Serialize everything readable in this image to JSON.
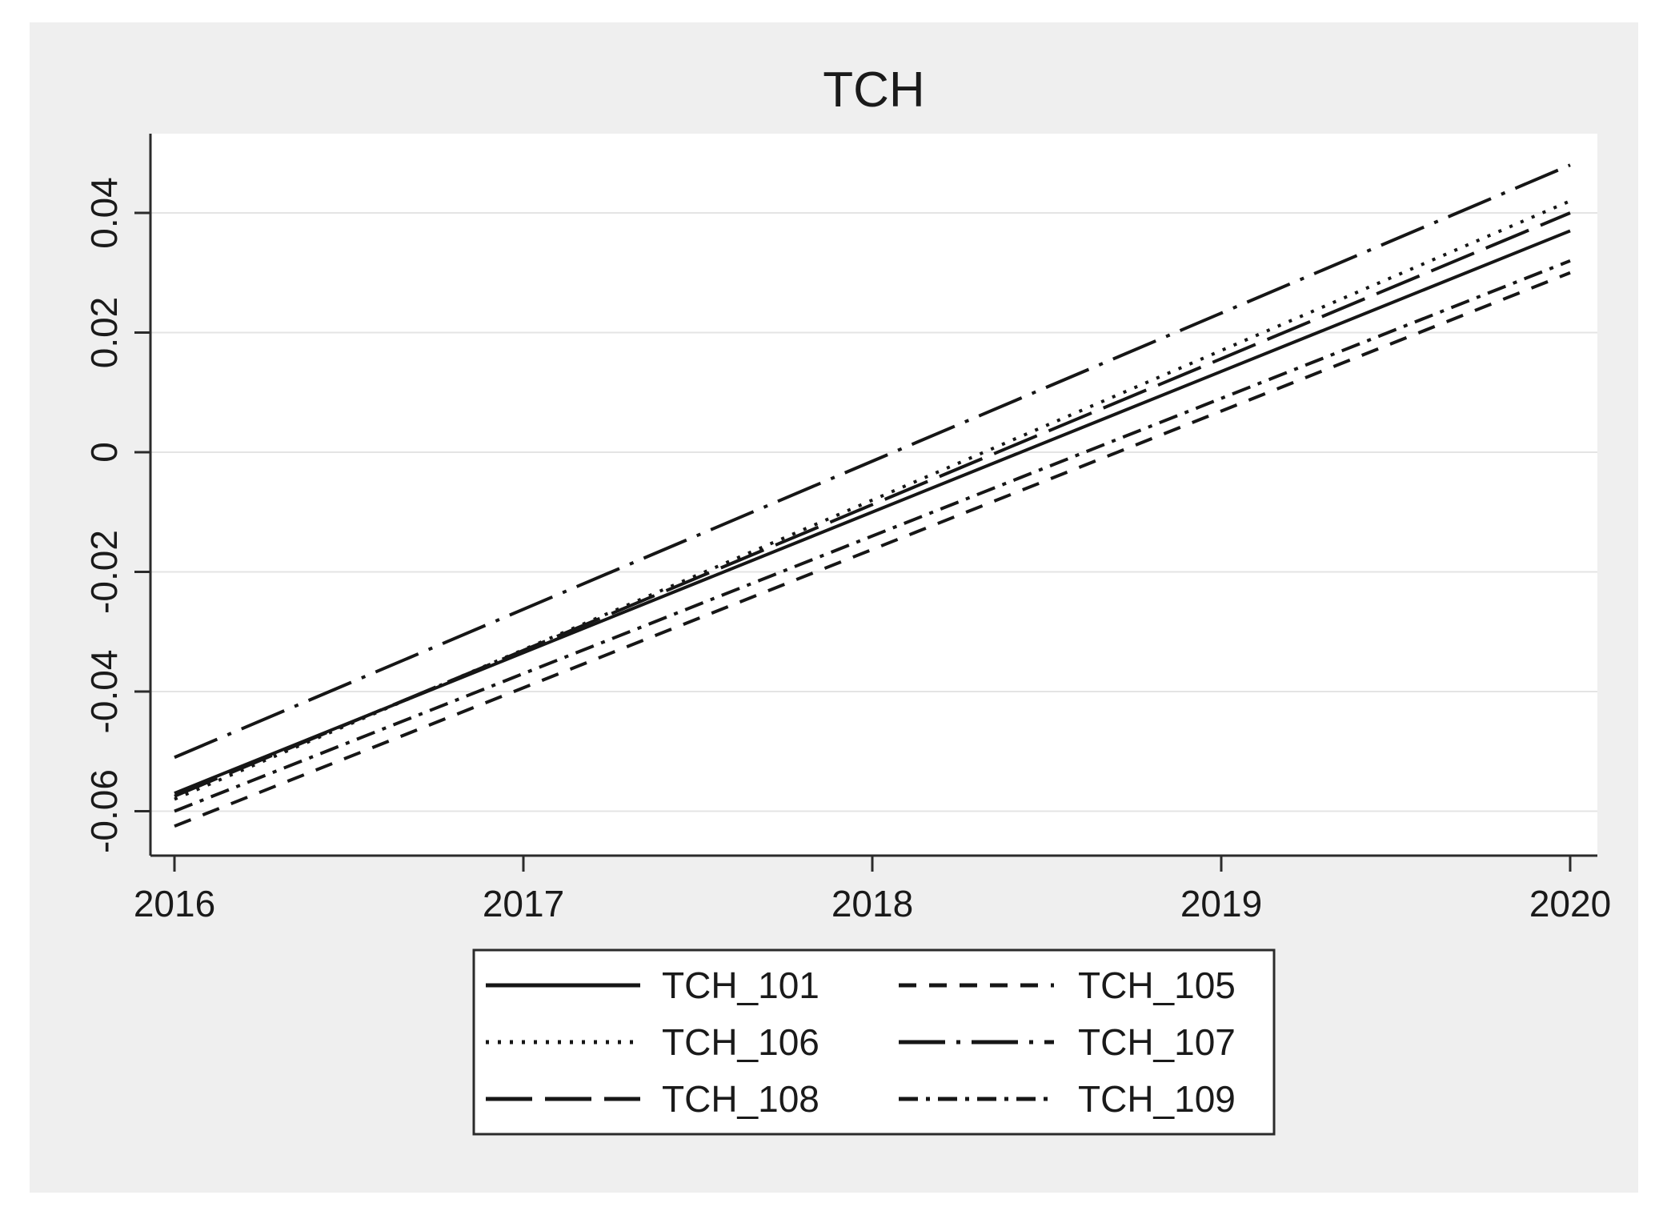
{
  "title": "TCH",
  "colors": {
    "page_bg": "#ffffff",
    "panel_bg": "#efefef",
    "plot_bg": "#ffffff",
    "grid": "#e4e4e4",
    "axis": "#2b2b2b",
    "series_line": "#161616",
    "legend_bg": "#ffffff",
    "legend_border": "#2b2b2b",
    "text": "#1a1a1a"
  },
  "chart_data": {
    "type": "line",
    "title": "TCH",
    "xlabel": "",
    "ylabel": "",
    "x": [
      2016,
      2020
    ],
    "x_ticks": [
      2016,
      2017,
      2018,
      2019,
      2020
    ],
    "x_tick_labels": [
      "2016",
      "2017",
      "2018",
      "2019",
      "2020"
    ],
    "y_ticks": [
      0.04,
      0.02,
      0,
      -0.02,
      -0.04,
      -0.06
    ],
    "y_tick_labels": [
      "0.04",
      "0.02",
      "0",
      "-0.02",
      "-0.04",
      "-0.06"
    ],
    "ylim": [
      -0.067,
      0.053
    ],
    "xlim": [
      2016,
      2020
    ],
    "grid": true,
    "legend_position": "bottom",
    "series": [
      {
        "name": "TCH_101",
        "dash": "solid",
        "values": [
          -0.057,
          0.037
        ]
      },
      {
        "name": "TCH_105",
        "dash": "short-dash",
        "values": [
          -0.0625,
          0.03
        ]
      },
      {
        "name": "TCH_106",
        "dash": "dot",
        "values": [
          -0.058,
          0.042
        ]
      },
      {
        "name": "TCH_107",
        "dash": "long-dash-dot",
        "values": [
          -0.051,
          0.048
        ]
      },
      {
        "name": "TCH_108",
        "dash": "long-dash",
        "values": [
          -0.0575,
          0.04
        ]
      },
      {
        "name": "TCH_109",
        "dash": "dash-dot",
        "values": [
          -0.06,
          0.032
        ]
      }
    ],
    "legend_order": [
      "TCH_101",
      "TCH_105",
      "TCH_106",
      "TCH_107",
      "TCH_108",
      "TCH_109"
    ]
  }
}
